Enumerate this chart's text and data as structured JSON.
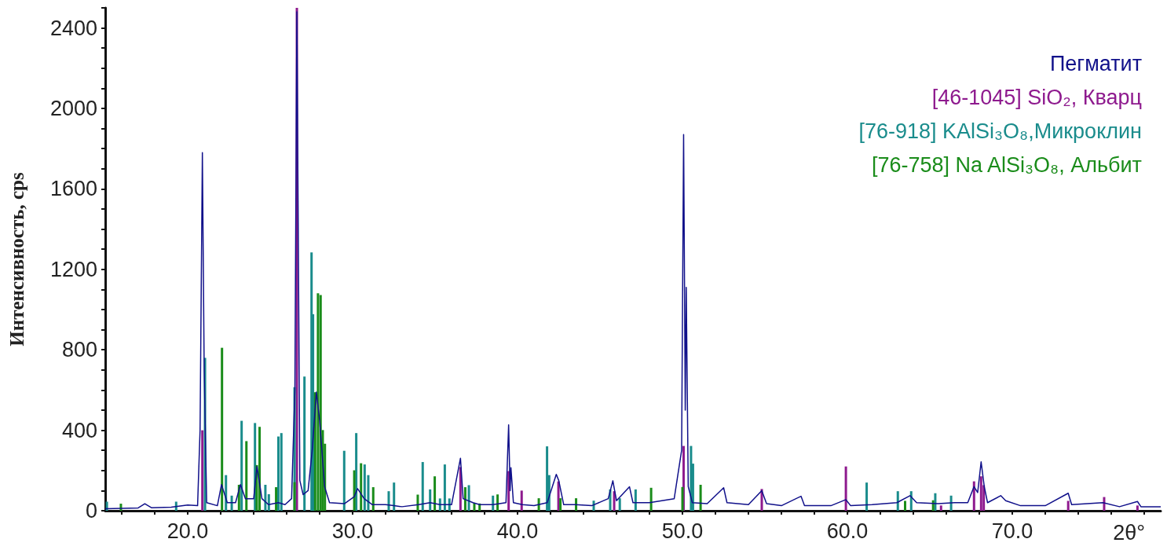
{
  "chart_data": {
    "type": "line",
    "xlabel": "2θ°",
    "ylabel": "Интенсивность, cps",
    "xlim": [
      15,
      79
    ],
    "ylim": [
      0,
      2500
    ],
    "xticks": [
      {
        "value": 16,
        "label": null
      },
      {
        "value": 18,
        "label": null
      },
      {
        "value": 20,
        "label": "20.0"
      },
      {
        "value": 22,
        "label": null
      },
      {
        "value": 24,
        "label": null
      },
      {
        "value": 26,
        "label": null
      },
      {
        "value": 28,
        "label": null
      },
      {
        "value": 30,
        "label": "30.0"
      },
      {
        "value": 32,
        "label": null
      },
      {
        "value": 34,
        "label": null
      },
      {
        "value": 36,
        "label": null
      },
      {
        "value": 38,
        "label": null
      },
      {
        "value": 40,
        "label": "40.0"
      },
      {
        "value": 42,
        "label": null
      },
      {
        "value": 44,
        "label": null
      },
      {
        "value": 46,
        "label": null
      },
      {
        "value": 48,
        "label": null
      },
      {
        "value": 50,
        "label": "50.0"
      },
      {
        "value": 52,
        "label": null
      },
      {
        "value": 54,
        "label": null
      },
      {
        "value": 56,
        "label": null
      },
      {
        "value": 58,
        "label": null
      },
      {
        "value": 60,
        "label": "60.0"
      },
      {
        "value": 62,
        "label": null
      },
      {
        "value": 64,
        "label": null
      },
      {
        "value": 66,
        "label": null
      },
      {
        "value": 68,
        "label": null
      },
      {
        "value": 70,
        "label": "70.0"
      },
      {
        "value": 72,
        "label": null
      },
      {
        "value": 74,
        "label": null
      },
      {
        "value": 76,
        "label": null
      },
      {
        "value": 78,
        "label": null
      }
    ],
    "yticks": [
      0,
      {
        "value": 100,
        "label": null
      },
      {
        "value": 200,
        "label": null
      },
      {
        "value": 300,
        "label": null
      },
      400,
      {
        "value": 500,
        "label": null
      },
      {
        "value": 600,
        "label": null
      },
      {
        "value": 700,
        "label": null
      },
      800,
      {
        "value": 900,
        "label": null
      },
      {
        "value": 1000,
        "label": null
      },
      {
        "value": 1100,
        "label": null
      },
      1200,
      {
        "value": 1300,
        "label": null
      },
      {
        "value": 1400,
        "label": null
      },
      {
        "value": 1500,
        "label": null
      },
      1600,
      {
        "value": 1700,
        "label": null
      },
      {
        "value": 1800,
        "label": null
      },
      {
        "value": 1900,
        "label": null
      },
      2000,
      {
        "value": 2100,
        "label": null
      },
      {
        "value": 2200,
        "label": null
      },
      {
        "value": 2300,
        "label": null
      },
      2400,
      {
        "value": 2500,
        "label": null
      }
    ],
    "legend": "top right",
    "marker": "none",
    "series": [
      {
        "name": "Пегматит",
        "color": "#10108a",
        "x": [
          15,
          16,
          17,
          17.4,
          17.8,
          19,
          20,
          20.6,
          20.75,
          20.89,
          21.0,
          21.15,
          21.8,
          22.05,
          22.4,
          22.9,
          23.2,
          23.5,
          24.0,
          24.2,
          24.5,
          24.9,
          25.5,
          25.9,
          26.3,
          26.5,
          26.62,
          26.8,
          27.0,
          27.3,
          27.55,
          27.8,
          28.0,
          28.3,
          28.6,
          29.5,
          30.1,
          30.3,
          30.7,
          31.2,
          32,
          32.5,
          33,
          34,
          34.7,
          35.3,
          36,
          36.54,
          36.7,
          37.3,
          37.7,
          38.5,
          39.3,
          39.46,
          39.55,
          39.6,
          39.75,
          40.3,
          41,
          41.8,
          42.35,
          42.5,
          42.8,
          43.5,
          44.5,
          45.5,
          45.78,
          46,
          46.79,
          47,
          48,
          49.5,
          49.95,
          50.07,
          50.17,
          50.23,
          50.35,
          50.6,
          51.5,
          52.5,
          52.7,
          54,
          54.81,
          55.1,
          56,
          57.19,
          57.4,
          59,
          59.91,
          60.2,
          61.5,
          63,
          63.8,
          64.2,
          65.5,
          66.5,
          67.3,
          67.68,
          67.9,
          68.11,
          68.3,
          68.5,
          69.3,
          69.6,
          70.5,
          72,
          73.39,
          73.6,
          75.5,
          76.5,
          77.59,
          77.8,
          79
        ],
        "values": [
          10,
          12,
          14,
          35,
          15,
          18,
          28,
          25,
          400,
          1780,
          700,
          40,
          25,
          130,
          40,
          40,
          130,
          60,
          60,
          220,
          60,
          30,
          40,
          30,
          60,
          600,
          2480,
          150,
          80,
          100,
          300,
          590,
          450,
          120,
          40,
          35,
          70,
          110,
          60,
          30,
          30,
          25,
          20,
          30,
          40,
          30,
          30,
          261,
          60,
          40,
          30,
          30,
          40,
          427,
          100,
          214,
          40,
          30,
          25,
          40,
          181,
          150,
          30,
          30,
          25,
          60,
          149,
          50,
          119,
          40,
          40,
          60,
          300,
          1870,
          500,
          1110,
          120,
          40,
          35,
          114,
          40,
          30,
          100,
          35,
          25,
          72,
          25,
          25,
          55,
          25,
          30,
          40,
          75,
          40,
          35,
          40,
          40,
          120,
          90,
          243,
          120,
          40,
          75,
          50,
          25,
          25,
          87,
          30,
          40,
          20,
          46,
          20,
          20
        ]
      },
      {
        "name": "[46-1045] SiO₂, Кварц",
        "type": "bar",
        "color": "#8e1a8e",
        "x": [
          20.89,
          26.62,
          36.54,
          39.46,
          40.25,
          42.48,
          45.86,
          50.07,
          54.81,
          59.91,
          65.68,
          67.68,
          68.11,
          68.27,
          73.39,
          75.57,
          77.59
        ],
        "values": [
          400,
          2500,
          217,
          197,
          100,
          146,
          97,
          322,
          108,
          220,
          26,
          146,
          171,
          127,
          49,
          68,
          26
        ]
      },
      {
        "name": "[76-918] KAlSi₃O₈,Микроклин",
        "type": "bar",
        "color": "#1a8c8c",
        "x": [
          15.1,
          19.3,
          21.05,
          22.32,
          22.67,
          23.27,
          24.08,
          24.71,
          24.92,
          25.5,
          25.68,
          26.48,
          27.08,
          27.51,
          27.6,
          29.49,
          30.22,
          30.73,
          30.95,
          32.19,
          32.51,
          34.25,
          34.7,
          35.3,
          35.59,
          35.87,
          37.05,
          38.51,
          41.79,
          41.92,
          44.62,
          45.62,
          46.2,
          47.16,
          50.52,
          50.64,
          61.17,
          63.06,
          63.87,
          65.33,
          66.29
        ],
        "values": [
          45,
          45,
          760,
          177,
          75,
          447,
          436,
          129,
          82,
          369,
          386,
          614,
          667,
          1284,
          977,
          298,
          386,
          230,
          177,
          97,
          140,
          242,
          106,
          61,
          230,
          61,
          127,
          75,
          320,
          177,
          50,
          106,
          62,
          106,
          322,
          234,
          140,
          97,
          97,
          87,
          75
        ]
      },
      {
        "name": "[76-758] Na AlSi₃O₈, Альбит",
        "type": "bar",
        "color": "#1a8c1a",
        "x": [
          15.95,
          22.08,
          23.11,
          23.56,
          24.19,
          24.36,
          25.36,
          26.48,
          27.73,
          27.9,
          28.06,
          28.19,
          28.32,
          30.1,
          30.51,
          31.25,
          33.95,
          34.98,
          36.83,
          37.38,
          37.7,
          38.79,
          41.29,
          42.6,
          43.55,
          48.1,
          50.0,
          51.1,
          63.5,
          65.2
        ],
        "values": [
          35,
          810,
          129,
          346,
          227,
          417,
          117,
          142,
          589,
          1081,
          1072,
          401,
          333,
          201,
          236,
          117,
          80,
          171,
          117,
          39,
          36,
          81,
          62,
          62,
          62,
          114,
          118,
          129,
          49,
          52
        ]
      }
    ]
  }
}
